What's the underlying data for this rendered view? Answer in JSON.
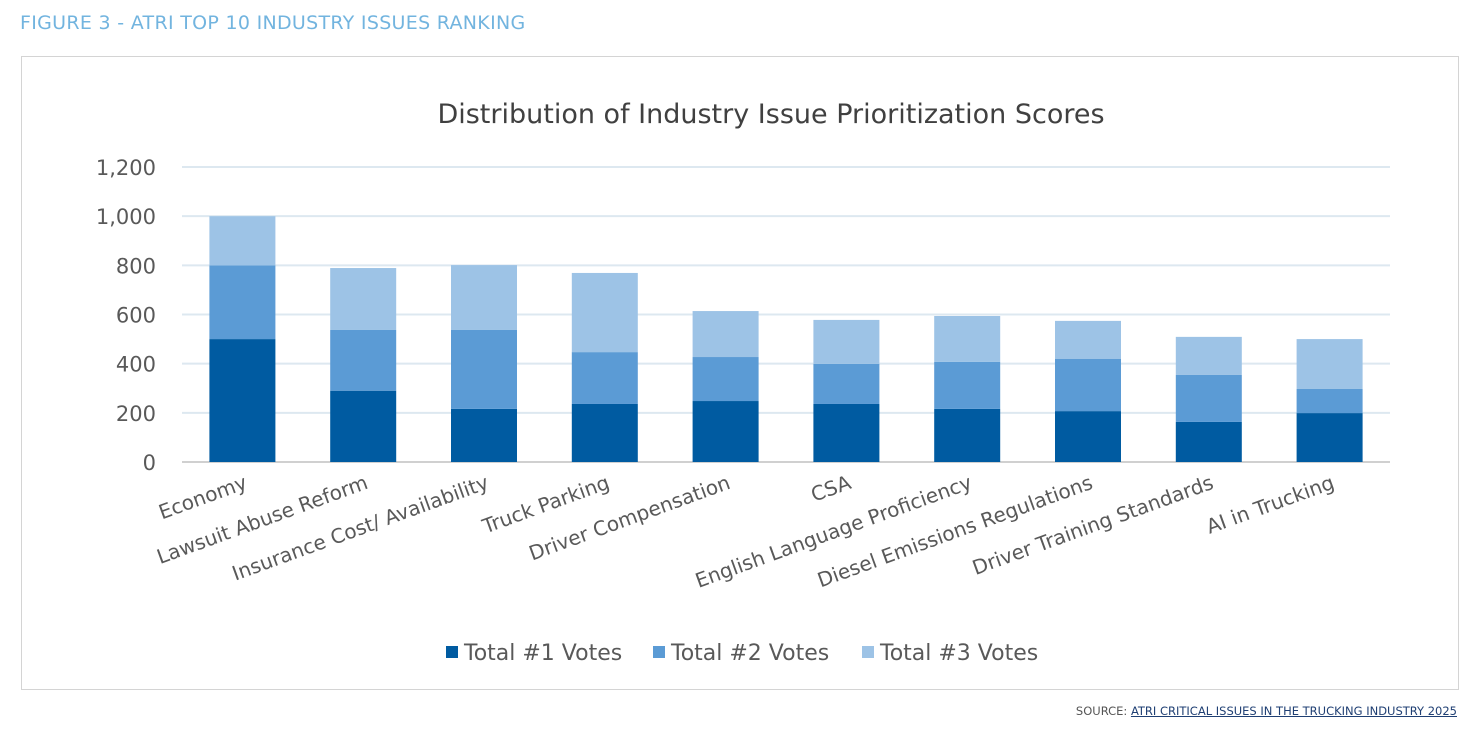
{
  "figure_title": "FIGURE 3 -  ATRI TOP 10 INDUSTRY ISSUES RANKING",
  "source": {
    "prefix": "SOURCE: ",
    "link": "ATRI CRITICAL ISSUES IN THE TRUCKING INDUSTRY 2025"
  },
  "chart_data": {
    "type": "bar",
    "stacked": true,
    "title": "Distribution of Industry Issue Prioritization Scores",
    "xlabel": "",
    "ylabel": "",
    "ylim": [
      0,
      1200
    ],
    "yticks": [
      "0",
      "200",
      "400",
      "600",
      "800",
      "1,000",
      "1,200"
    ],
    "grid": true,
    "legend": "bottom",
    "categories": [
      "Economy",
      "Lawsuit Abuse Reform",
      "Insurance Cost/ Availability",
      "Truck Parking",
      "Driver Compensation",
      "CSA",
      "English Language Proficiency",
      "Diesel Emissions Regulations",
      "Driver Training Standards",
      "AI in Trucking"
    ],
    "series": [
      {
        "name": "Total #1 Votes",
        "color": "#005ba1",
        "values": [
          500,
          290,
          216,
          236,
          248,
          236,
          216,
          207,
          163,
          199
        ]
      },
      {
        "name": "Total #2 Votes",
        "color": "#5b9bd5",
        "values": [
          300,
          247,
          321,
          211,
          179,
          163,
          191,
          212,
          191,
          98
        ]
      },
      {
        "name": "Total #3 Votes",
        "color": "#9dc3e6",
        "values": [
          200,
          252,
          264,
          322,
          187,
          179,
          187,
          155,
          155,
          203
        ]
      }
    ]
  }
}
